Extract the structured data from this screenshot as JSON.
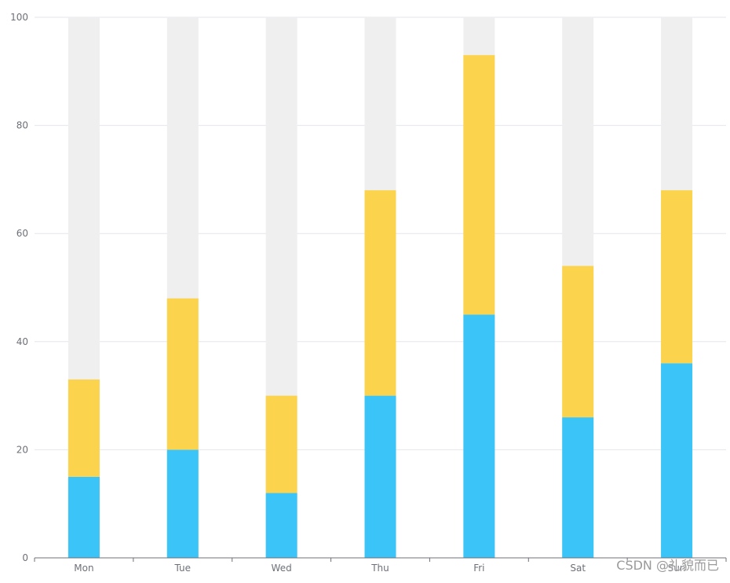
{
  "chart_data": {
    "type": "bar",
    "stacked": true,
    "categories": [
      "Mon",
      "Tue",
      "Wed",
      "Thu",
      "Fri",
      "Sat",
      "Sun"
    ],
    "ylim": [
      0,
      100
    ],
    "yticks": [
      0,
      20,
      40,
      60,
      80,
      100
    ],
    "grid": true,
    "series": [
      {
        "values": [
          15,
          20,
          12,
          30,
          45,
          26,
          36
        ],
        "color": "#3BC4F7"
      },
      {
        "values": [
          18,
          28,
          18,
          38,
          48,
          28,
          32
        ],
        "color": "#FCD34D"
      }
    ],
    "background_bar": {
      "value": 100,
      "color": "#EFEFEF"
    }
  },
  "watermark": "CSDN @礼貌而已"
}
